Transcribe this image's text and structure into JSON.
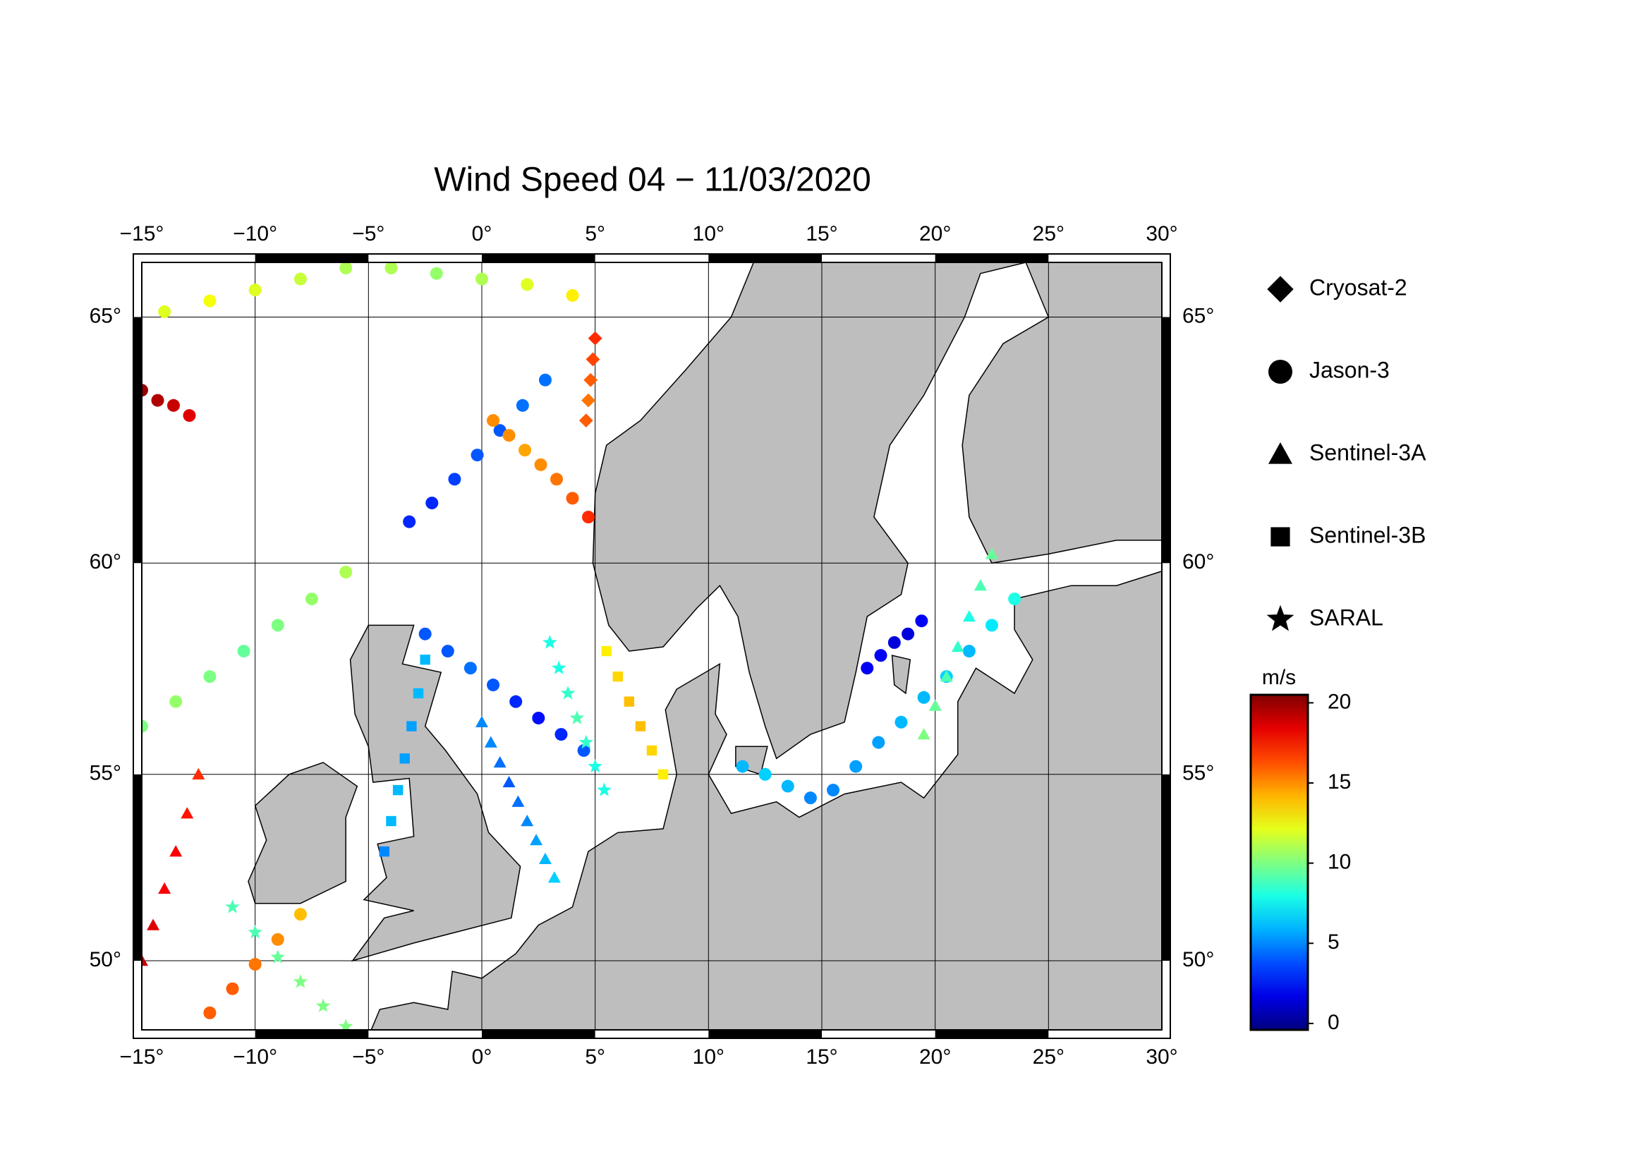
{
  "title": "Wind Speed 04 − 11/03/2020",
  "map": {
    "lonlim": [
      -15,
      30
    ],
    "latlim": [
      48,
      66
    ],
    "lon_ticks": [
      {
        "value": -15,
        "label": "−15°"
      },
      {
        "value": -10,
        "label": "−10°"
      },
      {
        "value": -5,
        "label": "−5°"
      },
      {
        "value": 0,
        "label": "0°"
      },
      {
        "value": 5,
        "label": "5°"
      },
      {
        "value": 10,
        "label": "10°"
      },
      {
        "value": 15,
        "label": "15°"
      },
      {
        "value": 20,
        "label": "20°"
      },
      {
        "value": 25,
        "label": "25°"
      },
      {
        "value": 30,
        "label": "30°"
      }
    ],
    "lat_ticks": [
      {
        "value": 50,
        "label": "50°"
      },
      {
        "value": 55,
        "label": "55°"
      },
      {
        "value": 60,
        "label": "60°"
      },
      {
        "value": 65,
        "label": "65°"
      }
    ],
    "grid": true,
    "land_color": "#bebebe"
  },
  "legend": [
    {
      "name": "Cryosat-2",
      "marker": "diamond"
    },
    {
      "name": "Jason-3",
      "marker": "circle"
    },
    {
      "name": "Sentinel-3A",
      "marker": "triangle"
    },
    {
      "name": "Sentinel-3B",
      "marker": "square"
    },
    {
      "name": "SARAL",
      "marker": "star"
    }
  ],
  "colorbar": {
    "unit": "m/s",
    "clim": [
      -0.4,
      20.5
    ],
    "ticks": [
      0,
      5,
      10,
      15,
      20
    ],
    "colormap": "jet"
  },
  "tracks": [
    {
      "satellite": "Jason-3",
      "lon": [
        -3.2,
        -2.2,
        -1.2,
        -0.2,
        0.8,
        1.8,
        2.8
      ],
      "lat": [
        60.9,
        61.3,
        61.8,
        62.3,
        62.8,
        63.3,
        63.8
      ],
      "speed": [
        3,
        3,
        3.5,
        4,
        4,
        4.5,
        4.5
      ]
    },
    {
      "satellite": "Jason-3",
      "lon": [
        -15,
        -14.3,
        -13.6,
        -12.9
      ],
      "lat": [
        63.6,
        63.4,
        63.3,
        63.1
      ],
      "speed": [
        20,
        19.5,
        19,
        18.5
      ]
    },
    {
      "satellite": "Jason-3",
      "lon": [
        -2.5,
        -1.5,
        -0.5,
        0.5,
        1.5,
        2.5,
        3.5,
        4.5
      ],
      "lat": [
        58.4,
        58.0,
        57.6,
        57.2,
        56.8,
        56.4,
        56.0,
        55.6
      ],
      "speed": [
        4,
        4,
        4.5,
        4,
        3,
        2.5,
        3,
        4
      ]
    },
    {
      "satellite": "Jason-3",
      "lon": [
        11.5,
        12.5,
        13.5,
        14.5,
        15.5,
        16.5,
        17.5,
        18.5,
        19.5,
        20.5,
        21.5,
        22.5,
        23.5
      ],
      "lat": [
        55.2,
        55.0,
        54.7,
        54.4,
        54.6,
        55.2,
        55.8,
        56.3,
        56.9,
        57.4,
        58,
        58.6,
        59.2
      ],
      "speed": [
        6,
        6.5,
        6,
        5,
        5,
        5.5,
        5.5,
        6,
        6,
        6.5,
        6,
        7,
        8
      ]
    },
    {
      "satellite": "Jason-3",
      "lon": [
        17,
        17.6,
        18.2,
        18.8,
        19.4
      ],
      "lat": [
        57.6,
        57.9,
        58.2,
        58.4,
        58.7
      ],
      "speed": [
        2,
        2,
        1.5,
        1.5,
        2
      ]
    },
    {
      "satellite": "Sentinel-3A",
      "lon": [
        0,
        0.4,
        0.8,
        1.2,
        1.6,
        2.0,
        2.4,
        2.8,
        3.2
      ],
      "lat": [
        56.3,
        55.8,
        55.3,
        54.8,
        54.3,
        53.8,
        53.3,
        52.8,
        52.3
      ],
      "speed": [
        5,
        5,
        4.5,
        4,
        4.5,
        5,
        5.5,
        6,
        6.5
      ]
    },
    {
      "satellite": "Sentinel-3A",
      "lon": [
        -12.5,
        -13,
        -13.5,
        -14,
        -14.5,
        -15
      ],
      "lat": [
        55,
        54,
        53,
        52,
        51,
        50
      ],
      "speed": [
        17,
        17.5,
        18,
        18,
        18.5,
        19
      ]
    },
    {
      "satellite": "Sentinel-3B",
      "lon": [
        -2.5,
        -2.8,
        -3.1,
        -3.4,
        -3.7,
        -4,
        -4.3
      ],
      "lat": [
        57.8,
        57,
        56.2,
        55.4,
        54.6,
        53.8,
        53
      ],
      "speed": [
        6,
        6,
        5.5,
        5.5,
        6,
        6,
        5
      ]
    },
    {
      "satellite": "SARAL",
      "lon": [
        3,
        3.4,
        3.8,
        4.2,
        4.6,
        5,
        5.4
      ],
      "lat": [
        58.2,
        57.6,
        57,
        56.4,
        55.8,
        55.2,
        54.6
      ],
      "speed": [
        8,
        8,
        8.5,
        9,
        8.5,
        8,
        8
      ]
    },
    {
      "satellite": "Cryosat-2",
      "lon": [
        5,
        4.9,
        4.8,
        4.7,
        4.6
      ],
      "lat": [
        64.6,
        64.2,
        63.8,
        63.4,
        63.0
      ],
      "speed": [
        17,
        16.5,
        16,
        15.5,
        16
      ]
    },
    {
      "satellite": "Jason-3",
      "lon": [
        0.5,
        1.2,
        1.9,
        2.6,
        3.3,
        4,
        4.7
      ],
      "lat": [
        63.0,
        62.7,
        62.4,
        62.1,
        61.8,
        61.4,
        61
      ],
      "speed": [
        15,
        15,
        14.5,
        15,
        15.5,
        16,
        17
      ]
    },
    {
      "satellite": "Jason-3",
      "lon": [
        -15,
        -13.5,
        -12,
        -10.5,
        -9,
        -7.5,
        -6
      ],
      "lat": [
        56.2,
        56.8,
        57.4,
        58,
        58.6,
        59.2,
        59.8
      ],
      "speed": [
        10,
        10.5,
        10,
        9.5,
        10,
        10.5,
        11
      ]
    },
    {
      "satellite": "Jason-3",
      "lon": [
        -14,
        -12,
        -10,
        -8,
        -6,
        -4,
        -2,
        0,
        2,
        4
      ],
      "lat": [
        65.1,
        65.3,
        65.5,
        65.7,
        65.9,
        65.9,
        65.8,
        65.7,
        65.6,
        65.4
      ],
      "speed": [
        12,
        12.5,
        12,
        11.5,
        11,
        11,
        10.5,
        11,
        12,
        13
      ]
    },
    {
      "satellite": "Sentinel-3A",
      "lon": [
        19.5,
        20.0,
        20.5,
        21,
        21.5,
        22,
        22.5
      ],
      "lat": [
        56,
        56.7,
        57.4,
        58.1,
        58.8,
        59.5,
        60.2
      ],
      "speed": [
        10,
        9.5,
        9,
        8.5,
        8,
        9,
        9.5
      ]
    },
    {
      "satellite": "SARAL",
      "lon": [
        -11,
        -10,
        -9,
        -8,
        -7,
        -6
      ],
      "lat": [
        51.5,
        50.8,
        50.1,
        49.4,
        48.7,
        48.1
      ],
      "speed": [
        9,
        9,
        9.5,
        10,
        10,
        10
      ]
    },
    {
      "satellite": "Sentinel-3B",
      "lon": [
        5.5,
        6,
        6.5,
        7,
        7.5,
        8
      ],
      "lat": [
        58,
        57.4,
        56.8,
        56.2,
        55.6,
        55
      ],
      "speed": [
        13,
        13.5,
        14,
        14,
        13.5,
        13
      ]
    },
    {
      "satellite": "Jason-3",
      "lon": [
        -12,
        -11,
        -10,
        -9,
        -8
      ],
      "lat": [
        48.5,
        49.2,
        49.9,
        50.6,
        51.3
      ],
      "speed": [
        16,
        16,
        15.5,
        15,
        14
      ]
    }
  ]
}
